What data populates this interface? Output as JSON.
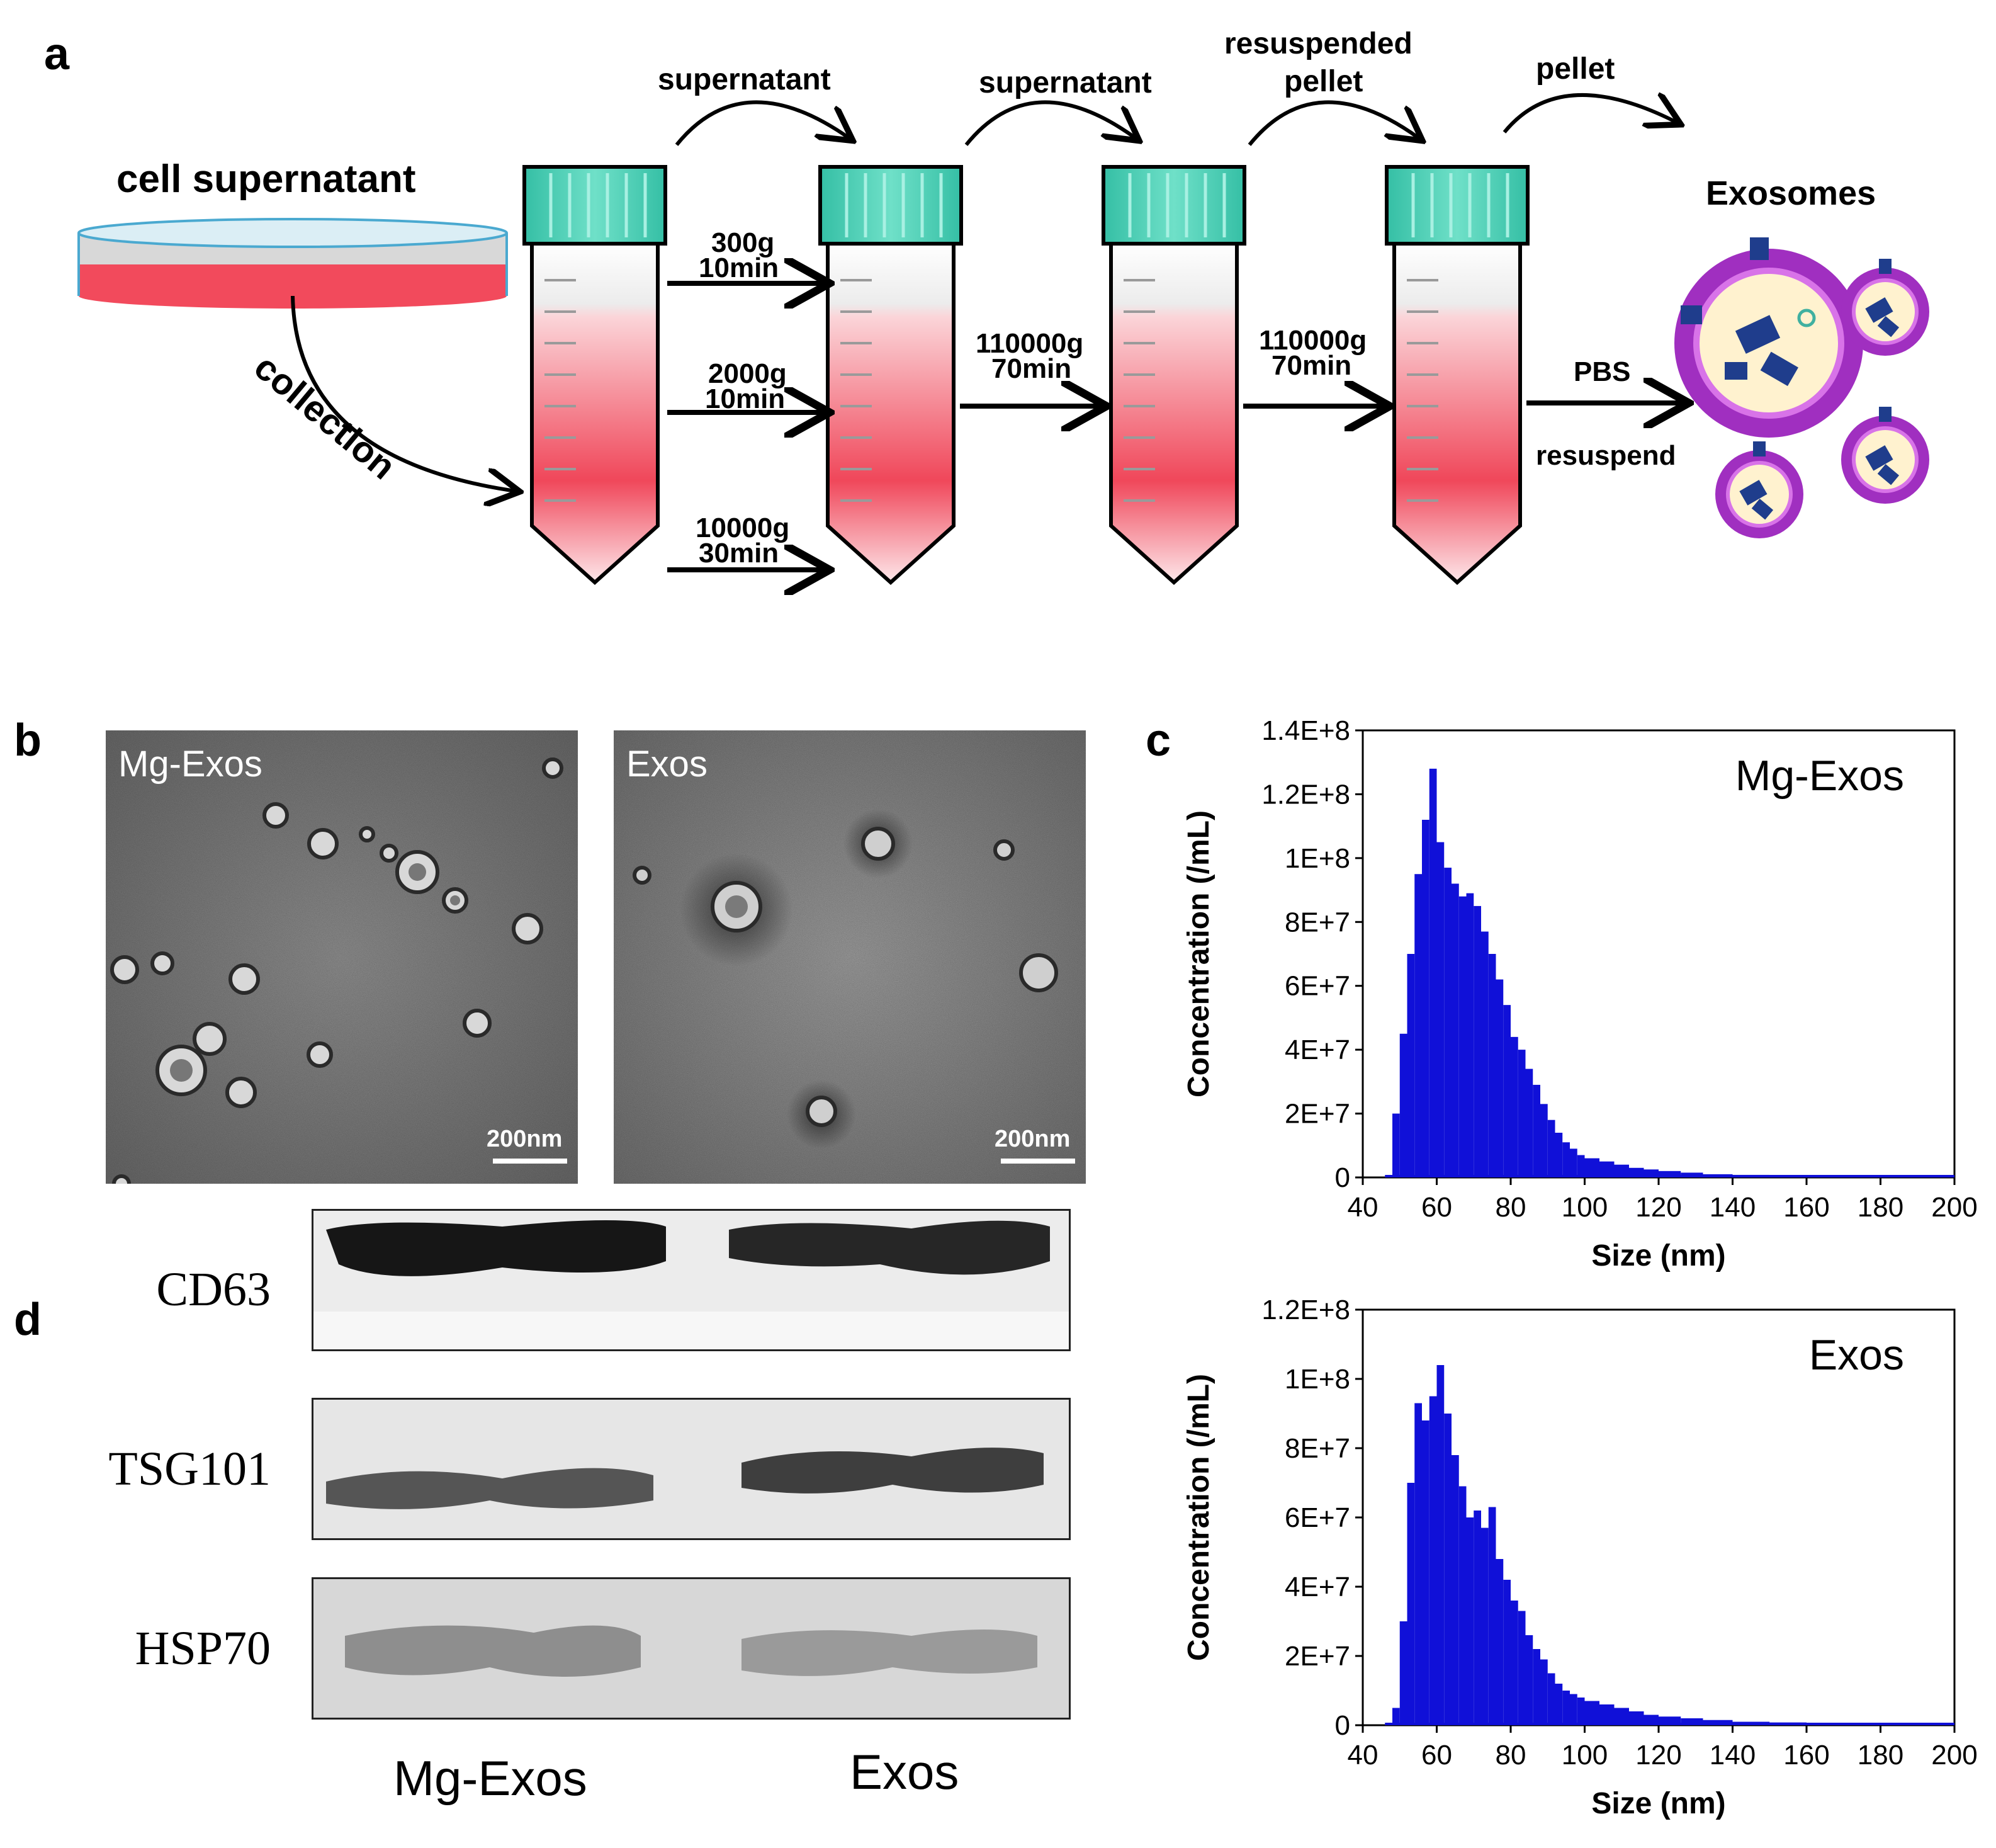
{
  "panels": {
    "a": "a",
    "b": "b",
    "c": "c",
    "d": "d"
  },
  "schematic": {
    "dish_label": "cell supernatant",
    "collection_label": "collection",
    "transfer_labels": [
      "supernatant",
      "supernatant",
      "resuspended pellet",
      "pellet"
    ],
    "spin_steps": [
      {
        "g": "300g",
        "time": "10min"
      },
      {
        "g": "2000g",
        "time": "10min"
      },
      {
        "g": "10000g",
        "time": "30min"
      }
    ],
    "ultra_steps": [
      {
        "g": "110000g",
        "time": "70min"
      },
      {
        "g": "110000g",
        "time": "70min"
      }
    ],
    "pbs_label": "PBS",
    "resuspend_label": "resuspend",
    "product_label": "Exosomes",
    "colors": {
      "tube_cap": "#3fc9b0",
      "medium": "#f0475a",
      "vesicle": "#8a3fb5",
      "cargo": "#1f3d8c"
    }
  },
  "tem": [
    {
      "label": "Mg-Exos",
      "scale": "200nm"
    },
    {
      "label": "Exos",
      "scale": "200nm"
    }
  ],
  "western_blot": {
    "proteins": [
      "CD63",
      "TSG101",
      "HSP70"
    ],
    "lanes": [
      "Mg-Exos",
      "Exos"
    ]
  },
  "chart_data": [
    {
      "type": "bar",
      "label": "Mg-Exos",
      "xlabel": "Size (nm)",
      "ylabel": "Concentration (/mL)",
      "xlim": [
        40,
        200
      ],
      "ylim": [
        0,
        140000000
      ],
      "xticks": [
        "40",
        "60",
        "80",
        "100",
        "120",
        "140",
        "160",
        "180",
        "200"
      ],
      "yticks": [
        "0",
        "2E+7",
        "4E+7",
        "6E+7",
        "8E+7",
        "1E+8",
        "1.2E+8",
        "1.4E+8"
      ],
      "color": "#1010d8",
      "x": [
        46,
        48,
        50,
        52,
        54,
        56,
        58,
        60,
        62,
        64,
        66,
        68,
        70,
        72,
        74,
        76,
        78,
        80,
        82,
        84,
        86,
        88,
        90,
        92,
        94,
        96,
        98,
        100,
        104,
        108,
        112,
        116,
        120,
        126,
        132,
        140,
        150,
        160,
        170,
        180,
        190,
        200
      ],
      "values": [
        0,
        20000000,
        45000000,
        70000000,
        95000000,
        112000000,
        128000000,
        105000000,
        97000000,
        92000000,
        88000000,
        89000000,
        85000000,
        77000000,
        70000000,
        62000000,
        54000000,
        44000000,
        40000000,
        34000000,
        29000000,
        23000000,
        18000000,
        14000000,
        11000000,
        9000000,
        7000000,
        6000000,
        5000000,
        4000000,
        3000000,
        2500000,
        2000000,
        1500000,
        1000000,
        800000,
        600000,
        400000,
        300000,
        200000,
        100000,
        0
      ]
    },
    {
      "type": "bar",
      "label": "Exos",
      "xlabel": "Size (nm)",
      "ylabel": "Concentration (/mL)",
      "xlim": [
        40,
        200
      ],
      "ylim": [
        0,
        120000000
      ],
      "xticks": [
        "40",
        "60",
        "80",
        "100",
        "120",
        "140",
        "160",
        "180",
        "200"
      ],
      "yticks": [
        "0",
        "2E+7",
        "4E+7",
        "6E+7",
        "8E+7",
        "1E+8",
        "1.2E+8"
      ],
      "color": "#1010d8",
      "x": [
        46,
        48,
        50,
        52,
        54,
        56,
        58,
        60,
        62,
        64,
        66,
        68,
        70,
        72,
        74,
        76,
        78,
        80,
        82,
        84,
        86,
        88,
        90,
        92,
        94,
        96,
        98,
        100,
        104,
        108,
        112,
        116,
        120,
        126,
        132,
        140,
        150,
        160,
        170,
        180,
        190,
        200
      ],
      "values": [
        0,
        5000000,
        30000000,
        70000000,
        93000000,
        88000000,
        95000000,
        104000000,
        90000000,
        78000000,
        69000000,
        60000000,
        62000000,
        57000000,
        63000000,
        48000000,
        42000000,
        36000000,
        33000000,
        26000000,
        22000000,
        19000000,
        15000000,
        12000000,
        10000000,
        9000000,
        8000000,
        7000000,
        6000000,
        5000000,
        4000000,
        3000000,
        2500000,
        2000000,
        1500000,
        1000000,
        800000,
        600000,
        400000,
        300000,
        200000,
        0
      ]
    }
  ]
}
